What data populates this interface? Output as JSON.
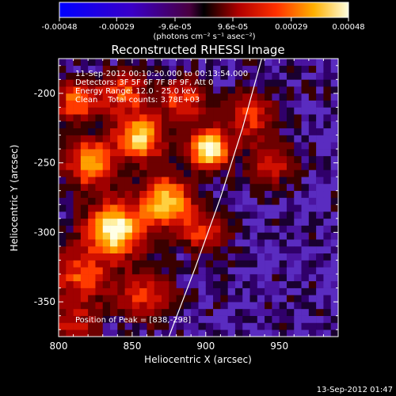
{
  "colorbar": {
    "tick_labels": [
      "-0.00048",
      "-0.00029",
      "-9.6e-05",
      "9.6e-05",
      "0.00029",
      "0.00048"
    ],
    "tick_values": [
      -0.00048,
      -0.00029,
      -9.6e-05,
      9.6e-05,
      0.00029,
      0.00048
    ],
    "range": [
      -0.00048,
      0.00048
    ],
    "unit_label": "(photons cm⁻² s⁻¹ asec⁻²)"
  },
  "chart_data": {
    "type": "heatmap",
    "title": "Reconstructed RHESSI Image",
    "xlabel": "Heliocentric X (arcsec)",
    "ylabel": "Heliocentric Y (arcsec)",
    "xlim": [
      800,
      990
    ],
    "ylim": [
      -375,
      -175
    ],
    "xticks": [
      800,
      850,
      900,
      950
    ],
    "yticks": [
      -200,
      -250,
      -300,
      -350
    ],
    "x_tick_labels": [
      "800",
      "850",
      "900",
      "950"
    ],
    "y_tick_labels": [
      "-200",
      "-250",
      "-300",
      "-350"
    ],
    "annotations": [
      "11-Sep-2012 00:10:20.000 to 00:13:54.000",
      "Detectors: 3F 5F 6F 7F 8F 9F, Att 0",
      "Energy Range: 12.0 - 25.0 keV",
      "Clean    Total counts: 3.78E+03"
    ],
    "peak_label": "Position of Peak = [838,-298]",
    "peak": [
      838,
      -298
    ],
    "sources": [
      {
        "x": 838,
        "y": -298,
        "amp": 1.0,
        "sigma": 13
      },
      {
        "x": 855,
        "y": -232,
        "amp": 0.85,
        "sigma": 11
      },
      {
        "x": 873,
        "y": -278,
        "amp": 0.85,
        "sigma": 12
      },
      {
        "x": 902,
        "y": -240,
        "amp": 0.95,
        "sigma": 10
      },
      {
        "x": 822,
        "y": -250,
        "amp": 0.7,
        "sigma": 12
      },
      {
        "x": 812,
        "y": -205,
        "amp": 0.6,
        "sigma": 10
      },
      {
        "x": 845,
        "y": -200,
        "amp": 0.55,
        "sigma": 11
      },
      {
        "x": 885,
        "y": -205,
        "amp": 0.5,
        "sigma": 11
      },
      {
        "x": 930,
        "y": -215,
        "amp": 0.45,
        "sigma": 12
      },
      {
        "x": 945,
        "y": -250,
        "amp": 0.4,
        "sigma": 11
      },
      {
        "x": 900,
        "y": -300,
        "amp": 0.45,
        "sigma": 11
      },
      {
        "x": 815,
        "y": -330,
        "amp": 0.5,
        "sigma": 14
      },
      {
        "x": 860,
        "y": -345,
        "amp": 0.45,
        "sigma": 13
      },
      {
        "x": 810,
        "y": -365,
        "amp": 0.35,
        "sigma": 12
      }
    ],
    "limb_curve": [
      [
        875,
        -375
      ],
      [
        893,
        -325
      ],
      [
        910,
        -275
      ],
      [
        925,
        -225
      ],
      [
        938,
        -175
      ]
    ]
  },
  "footer": {
    "timestamp": "13-Sep-2012 01:47"
  }
}
